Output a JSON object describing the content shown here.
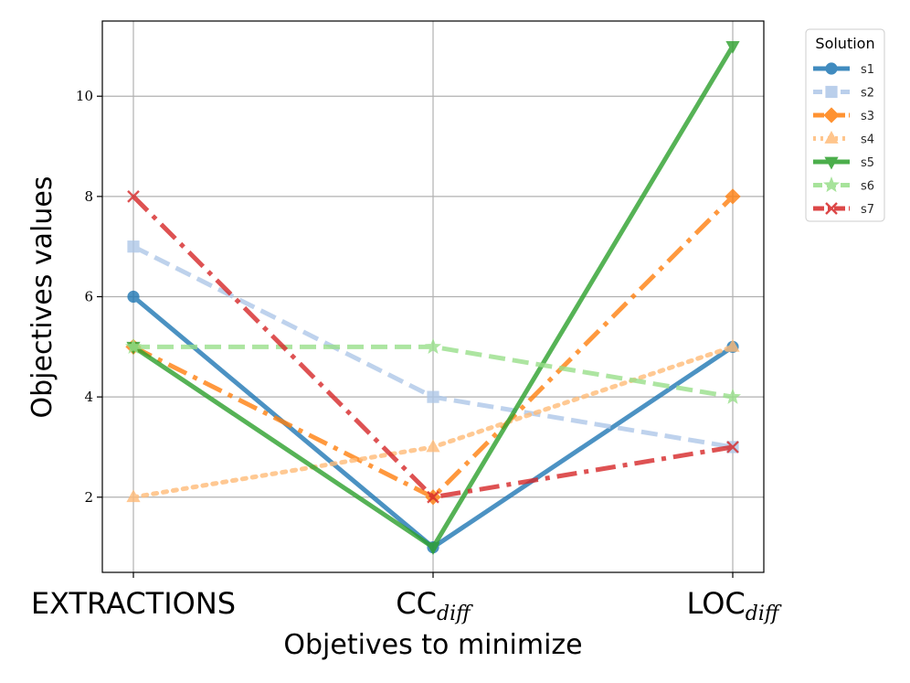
{
  "chart_data": {
    "type": "line",
    "title": "",
    "xlabel": "Objetives to minimize",
    "ylabel": "Objectives values",
    "categories": [
      {
        "main": "EXTRACTIONS",
        "sub": ""
      },
      {
        "main": "CC",
        "sub": "diff"
      },
      {
        "main": "LOC",
        "sub": "diff"
      }
    ],
    "ylim": [
      0.5,
      11.5
    ],
    "yticks": [
      2,
      4,
      6,
      8,
      10
    ],
    "grid": true,
    "legend": {
      "title": "Solution",
      "placement": "outside upper right"
    },
    "series": [
      {
        "name": "s1",
        "values": [
          6,
          1,
          5
        ],
        "color": "#1f77b4",
        "dash": "solid",
        "marker": "circle"
      },
      {
        "name": "s2",
        "values": [
          7,
          4,
          3
        ],
        "color": "#aec7e8",
        "dash": "dashed",
        "marker": "square"
      },
      {
        "name": "s3",
        "values": [
          5,
          2,
          8
        ],
        "color": "#ff7f0e",
        "dash": "dashdot",
        "marker": "diamond"
      },
      {
        "name": "s4",
        "values": [
          2,
          3,
          5
        ],
        "color": "#ffbb78",
        "dash": "dotted",
        "marker": "triangle-up"
      },
      {
        "name": "s5",
        "values": [
          5,
          1,
          11
        ],
        "color": "#2ca02c",
        "dash": "solid",
        "marker": "triangle-down"
      },
      {
        "name": "s6",
        "values": [
          5,
          5,
          4
        ],
        "color": "#98df8a",
        "dash": "dashed",
        "marker": "star"
      },
      {
        "name": "s7",
        "values": [
          8,
          2,
          3
        ],
        "color": "#d62728",
        "dash": "dashdot",
        "marker": "x"
      }
    ]
  }
}
